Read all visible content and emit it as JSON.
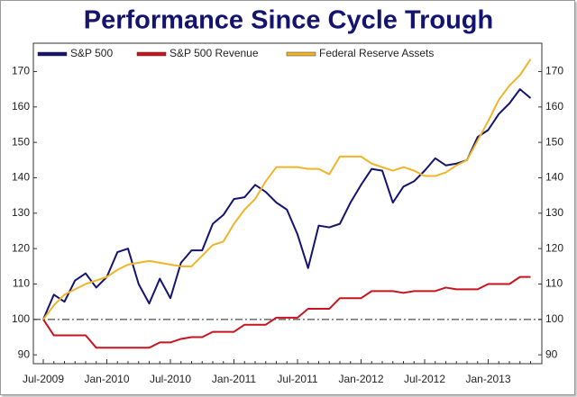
{
  "chart_data": {
    "type": "line",
    "title": "Performance Since Cycle Trough",
    "categories": [
      "Jul-2009",
      null,
      null,
      null,
      null,
      null,
      "Jan-2010",
      null,
      null,
      null,
      null,
      null,
      "Jul-2010",
      null,
      null,
      null,
      null,
      null,
      "Jan-2011",
      null,
      null,
      null,
      null,
      null,
      "Jul-2011",
      null,
      null,
      null,
      null,
      null,
      "Jan-2012",
      null,
      null,
      null,
      null,
      null,
      "Jul-2012",
      null,
      null,
      null,
      null,
      null,
      "Jan-2013",
      null,
      null,
      null,
      null
    ],
    "series": [
      {
        "name": "S&P 500",
        "color": "#14146e",
        "values": [
          100,
          107,
          105,
          111,
          113,
          109,
          112,
          119,
          120,
          110,
          104.5,
          111.5,
          106,
          116,
          119.5,
          119.5,
          127,
          129.5,
          134,
          134.5,
          138,
          136,
          133,
          131,
          124,
          114.5,
          126.5,
          126,
          127,
          133,
          138,
          142.5,
          142,
          133,
          137.5,
          139,
          142,
          145.5,
          143.5,
          144,
          145,
          151.5,
          153.5,
          158,
          161,
          165,
          162.5
        ]
      },
      {
        "name": "S&P 500 Revenue",
        "color": "#c8141e",
        "values": [
          100,
          95.5,
          95.5,
          95.5,
          95.5,
          92,
          92,
          92,
          92,
          92,
          92,
          93.5,
          93.5,
          94.5,
          95,
          95,
          96.5,
          96.5,
          96.5,
          98.5,
          98.5,
          98.5,
          100.5,
          100.5,
          100.5,
          103,
          103,
          103,
          106,
          106,
          106,
          108,
          108,
          108,
          107.5,
          108,
          108,
          108,
          109,
          108.5,
          108.5,
          108.5,
          110,
          110,
          110,
          112,
          112
        ]
      },
      {
        "name": "Federal Reserve Assets",
        "color": "#f0b428",
        "values": [
          100,
          104,
          107,
          108.5,
          110,
          111,
          112,
          114,
          115.5,
          116,
          116.5,
          116,
          115.5,
          115,
          115,
          118,
          121,
          122,
          127,
          131,
          134,
          139,
          143,
          143,
          143,
          142.5,
          142.5,
          141,
          146,
          146,
          146,
          144,
          143,
          142,
          143,
          142,
          140.5,
          140.5,
          141.5,
          143.5,
          145,
          150.5,
          156,
          162,
          166,
          169,
          173.5
        ]
      }
    ],
    "ylim": [
      87.5,
      178
    ],
    "yticks": [
      90,
      100,
      110,
      120,
      130,
      140,
      150,
      160,
      170
    ],
    "reference_line": 100,
    "legend": "top-left"
  }
}
